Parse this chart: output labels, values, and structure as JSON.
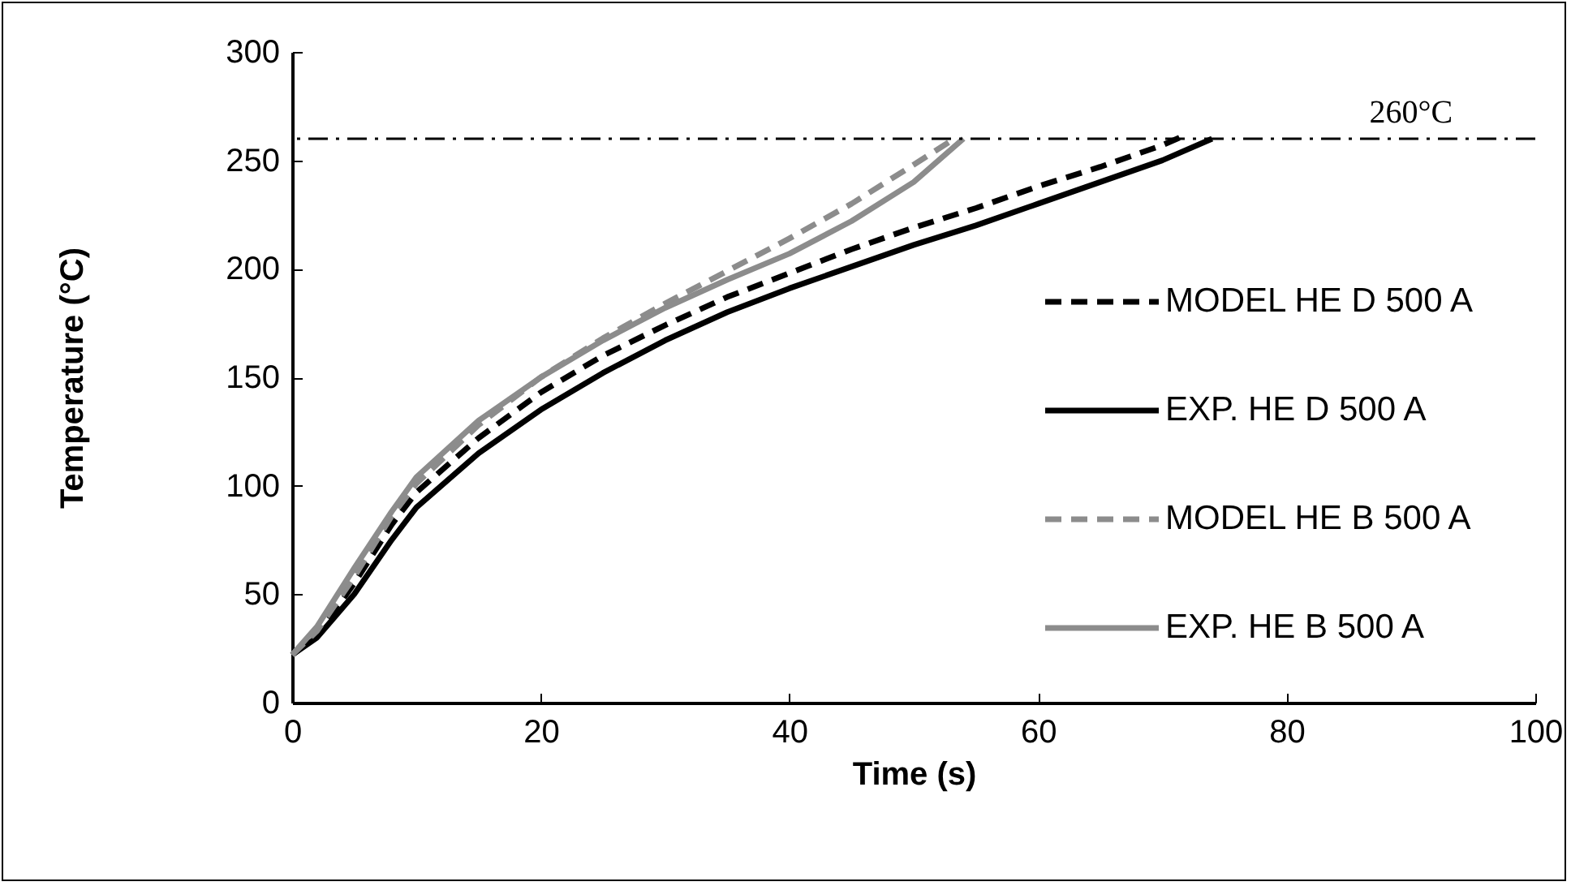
{
  "chart_data": {
    "type": "line",
    "xlabel": "Time (s)",
    "ylabel": "Temperature (°C)",
    "xlim": [
      0,
      100
    ],
    "xticks": [
      0,
      20,
      40,
      60,
      80,
      100
    ],
    "ylim": [
      0,
      300
    ],
    "yticks": [
      0,
      50,
      100,
      150,
      200,
      250,
      300
    ],
    "legend": "bottom right",
    "grid": false,
    "ref_lines": [
      {
        "axis": "y",
        "value": 260,
        "label": "260°C",
        "line_style": "dashdot",
        "color": "#000000"
      }
    ],
    "series": [
      {
        "name": "MODEL HE D 500 A",
        "color": "#000000",
        "line_style": "dashed",
        "x": [
          0,
          2,
          5,
          8,
          10,
          15,
          20,
          25,
          30,
          35,
          40,
          45,
          50,
          55,
          60,
          65,
          70,
          72
        ],
        "values": [
          22,
          31,
          55,
          82,
          97,
          122,
          143,
          160,
          174,
          187,
          198,
          209,
          219,
          228,
          238,
          247,
          257,
          262
        ]
      },
      {
        "name": "EXP. HE D 500 A",
        "color": "#000000",
        "line_style": "solid",
        "x": [
          0,
          2,
          5,
          8,
          10,
          15,
          20,
          25,
          30,
          35,
          40,
          45,
          50,
          55,
          60,
          65,
          70,
          74
        ],
        "values": [
          22,
          30,
          50,
          75,
          90,
          115,
          135,
          152,
          167,
          180,
          191,
          201,
          211,
          220,
          230,
          240,
          250,
          260
        ]
      },
      {
        "name": "MODEL HE B 500 A",
        "color": "#8c8c8c",
        "line_style": "dashed",
        "x": [
          0,
          2,
          5,
          8,
          10,
          15,
          20,
          25,
          30,
          35,
          40,
          45,
          50,
          53
        ],
        "values": [
          22,
          33,
          58,
          86,
          101,
          128,
          150,
          168,
          184,
          199,
          214,
          230,
          248,
          259
        ]
      },
      {
        "name": "EXP. HE B 500 A",
        "color": "#8c8c8c",
        "line_style": "solid",
        "x": [
          0,
          2,
          5,
          8,
          10,
          15,
          20,
          25,
          30,
          35,
          40,
          45,
          50,
          54
        ],
        "values": [
          22,
          35,
          62,
          88,
          104,
          130,
          150,
          167,
          182,
          195,
          207,
          222,
          240,
          260
        ]
      }
    ]
  }
}
